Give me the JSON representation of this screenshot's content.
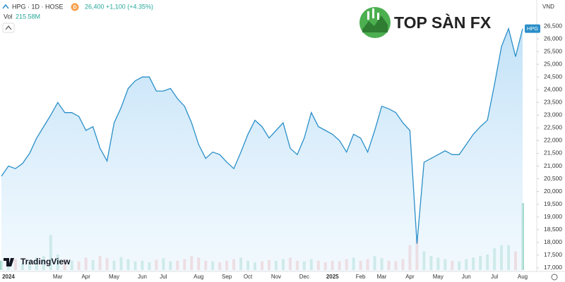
{
  "header": {
    "symbol": "HPG · 1D · HOSE",
    "price": "26,400",
    "change": "+1,100 (+4.35%)",
    "interval_badge": "D",
    "volume_label": "Vol",
    "volume_value": "215.58M",
    "currency": "VND",
    "watermark": "TOP SÀN FX",
    "logo": "TradingView"
  },
  "chart_data": {
    "type": "area",
    "categories": [
      null,
      "2024",
      null,
      null,
      null,
      null,
      null,
      null,
      "Mar",
      null,
      null,
      null,
      "Apr",
      null,
      null,
      null,
      "May",
      null,
      null,
      null,
      "Jun",
      null,
      null,
      "Jul",
      null,
      null,
      null,
      null,
      "Aug",
      null,
      null,
      null,
      "Sep",
      null,
      null,
      "Oct",
      null,
      null,
      null,
      "Nov",
      null,
      null,
      null,
      "Dec",
      null,
      null,
      null,
      "2025",
      null,
      null,
      null,
      "Feb",
      null,
      null,
      "Mar",
      null,
      null,
      null,
      "Apr",
      null,
      null,
      null,
      "May",
      null,
      null,
      null,
      "Jun",
      null,
      null,
      null,
      "Jul",
      null,
      null,
      null,
      "Aug"
    ],
    "series": [
      {
        "name": "HPG",
        "color": "#2a8fc9",
        "values": [
          20600,
          21000,
          20900,
          21100,
          21500,
          22100,
          22550,
          23000,
          23500,
          23100,
          23100,
          22950,
          22400,
          22550,
          21700,
          21200,
          22700,
          23300,
          24050,
          24350,
          24500,
          24500,
          23950,
          23950,
          24050,
          23650,
          23350,
          22700,
          21850,
          21300,
          21550,
          21450,
          21150,
          20900,
          21550,
          22250,
          22800,
          22550,
          22100,
          22400,
          22700,
          21700,
          21450,
          22100,
          23100,
          22550,
          22400,
          22250,
          22000,
          21550,
          22250,
          22100,
          21550,
          22400,
          23350,
          23250,
          23100,
          22700,
          22400,
          17950,
          21150,
          21300,
          21450,
          21600,
          21450,
          21450,
          21850,
          22250,
          22550,
          22800,
          24200,
          25700,
          26400,
          25300,
          26400
        ]
      }
    ],
    "volume": {
      "up_color": "#8fd1c1",
      "down_color": "#f2a9a9",
      "values": [
        30,
        25,
        35,
        22,
        28,
        40,
        45,
        113,
        50,
        35,
        30,
        28,
        40,
        32,
        45,
        38,
        30,
        42,
        35,
        28,
        30,
        25,
        33,
        38,
        28,
        30,
        35,
        45,
        40,
        30,
        28,
        25,
        30,
        35,
        40,
        30,
        25,
        28,
        32,
        30,
        35,
        40,
        30,
        28,
        35,
        30,
        25,
        30,
        28,
        35,
        40,
        30,
        35,
        45,
        38,
        30,
        28,
        35,
        80,
        100,
        60,
        45,
        40,
        35,
        30,
        28,
        35,
        40,
        45,
        50,
        70,
        80,
        80,
        60,
        215.58
      ]
    },
    "ylim": [
      16860,
      27525
    ],
    "yticks": [
      {
        "value": 17000,
        "label": "17,000"
      },
      {
        "value": 17500,
        "label": "17,500"
      },
      {
        "value": 18000,
        "label": "18,000"
      },
      {
        "value": 18500,
        "label": "18,500"
      },
      {
        "value": 19000,
        "label": "19,000"
      },
      {
        "value": 19500,
        "label": "19,500"
      },
      {
        "value": 20000,
        "label": "20,000"
      },
      {
        "value": 20500,
        "label": "20,500"
      },
      {
        "value": 21000,
        "label": "21,000"
      },
      {
        "value": 21500,
        "label": "21,500"
      },
      {
        "value": 22000,
        "label": "22,000"
      },
      {
        "value": 22500,
        "label": "22,500"
      },
      {
        "value": 23000,
        "label": "23,000"
      },
      {
        "value": 23500,
        "label": "23,500"
      },
      {
        "value": 24000,
        "label": "24,000"
      },
      {
        "value": 24500,
        "label": "24,500"
      },
      {
        "value": 25000,
        "label": "25,000"
      },
      {
        "value": 25500,
        "label": "25,500"
      },
      {
        "value": 26000,
        "label": "26,000"
      },
      {
        "value": 26500,
        "label": "26,500"
      }
    ],
    "grid": false
  }
}
